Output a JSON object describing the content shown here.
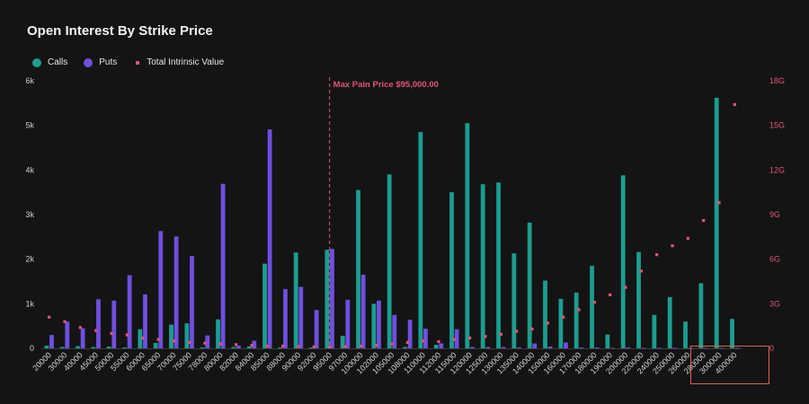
{
  "title": "Open Interest By Strike Price",
  "legend": {
    "calls": "Calls",
    "puts": "Puts",
    "intrinsic": "Total Intrinsic Value"
  },
  "colors": {
    "calls": "#1b9d8f",
    "puts": "#6f4fe0",
    "intrinsic": "#e05577",
    "background": "#141414"
  },
  "chart_data": {
    "type": "bar",
    "title": "Open Interest By Strike Price",
    "categories": [
      "20000",
      "30000",
      "40000",
      "45000",
      "50000",
      "55000",
      "60000",
      "65000",
      "70000",
      "75000",
      "78000",
      "80000",
      "82000",
      "84000",
      "85000",
      "88000",
      "90000",
      "92000",
      "95000",
      "97000",
      "100000",
      "102000",
      "105000",
      "108000",
      "110000",
      "112000",
      "115000",
      "120000",
      "125000",
      "130000",
      "135000",
      "140000",
      "150000",
      "160000",
      "170000",
      "180000",
      "190000",
      "200000",
      "220000",
      "240000",
      "250000",
      "260000",
      "280000",
      "300000",
      "400000"
    ],
    "y_left": {
      "ylim": [
        0,
        6000
      ],
      "ticks": [
        "0",
        "1k",
        "2k",
        "3k",
        "4k",
        "5k",
        "6k"
      ]
    },
    "y_right": {
      "ylim": [
        0,
        18
      ],
      "unit": "G",
      "ticks": [
        "0",
        "3G",
        "6G",
        "9G",
        "12G",
        "15G",
        "18G"
      ]
    },
    "series": [
      {
        "name": "Calls",
        "axis": "left",
        "kind": "bar",
        "values": [
          60,
          30,
          50,
          30,
          40,
          20,
          430,
          120,
          530,
          560,
          20,
          650,
          30,
          40,
          1900,
          20,
          2150,
          20,
          2210,
          280,
          3550,
          1000,
          3900,
          30,
          4850,
          80,
          3500,
          5050,
          3680,
          3720,
          2130,
          2820,
          1520,
          1110,
          1250,
          1850,
          310,
          3880,
          2160,
          750,
          1150,
          600,
          1460,
          5620,
          660
        ]
      },
      {
        "name": "Puts",
        "axis": "left",
        "kind": "bar",
        "values": [
          300,
          600,
          450,
          1100,
          1070,
          1640,
          1210,
          2630,
          2510,
          2070,
          290,
          3690,
          60,
          170,
          4910,
          1330,
          1380,
          860,
          2230,
          1090,
          1650,
          1070,
          750,
          640,
          440,
          110,
          430,
          30,
          30,
          30,
          20,
          110,
          40,
          130,
          20,
          20,
          10,
          20,
          10,
          10,
          10,
          10,
          10,
          10,
          10
        ]
      },
      {
        "name": "Total Intrinsic Value",
        "axis": "right",
        "kind": "point",
        "values": [
          2.1,
          1.8,
          1.4,
          1.2,
          1.0,
          0.9,
          0.7,
          0.6,
          0.5,
          0.4,
          0.35,
          0.3,
          0.25,
          0.2,
          0.15,
          0.15,
          0.12,
          0.1,
          0.1,
          0.12,
          0.15,
          0.2,
          0.3,
          0.4,
          0.5,
          0.45,
          0.6,
          0.7,
          0.8,
          0.95,
          1.15,
          1.3,
          1.7,
          2.1,
          2.6,
          3.1,
          3.6,
          4.1,
          5.2,
          6.3,
          6.9,
          7.4,
          8.6,
          9.8,
          16.4
        ]
      }
    ],
    "annotation": {
      "text": "Max Pain Price $95,000.00",
      "category": "95000"
    },
    "highlight_categories": [
      "260000",
      "280000",
      "300000",
      "400000"
    ],
    "grid": false,
    "legend_position": "top-left"
  }
}
